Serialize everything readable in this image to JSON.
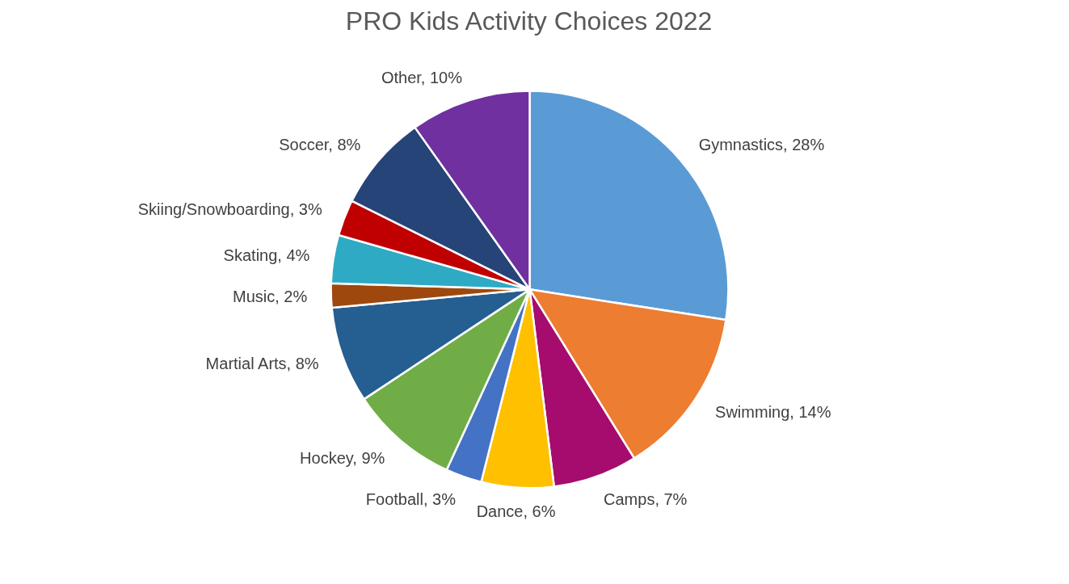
{
  "chart_data": {
    "type": "pie",
    "title": "PRO Kids Activity Choices 2022",
    "categories": [
      "Gymnastics",
      "Swimming",
      "Camps",
      "Dance",
      "Football",
      "Hockey",
      "Martial Arts",
      "Music",
      "Skating",
      "Skiing/Snowboarding",
      "Soccer",
      "Other"
    ],
    "values": [
      28,
      14,
      7,
      6,
      3,
      9,
      8,
      2,
      4,
      3,
      8,
      10
    ],
    "value_labels": [
      "28%",
      "14%",
      "7%",
      "6%",
      "3%",
      "9%",
      "8%",
      "2%",
      "4%",
      "3%",
      "8%",
      "10%"
    ],
    "colors": [
      "#5b9bd5",
      "#ed7d31",
      "#a50c6e",
      "#ffc000",
      "#4472c4",
      "#70ad47",
      "#255e91",
      "#9e480e",
      "#2eaac4",
      "#c00000",
      "#264478",
      "#7030a0"
    ]
  }
}
